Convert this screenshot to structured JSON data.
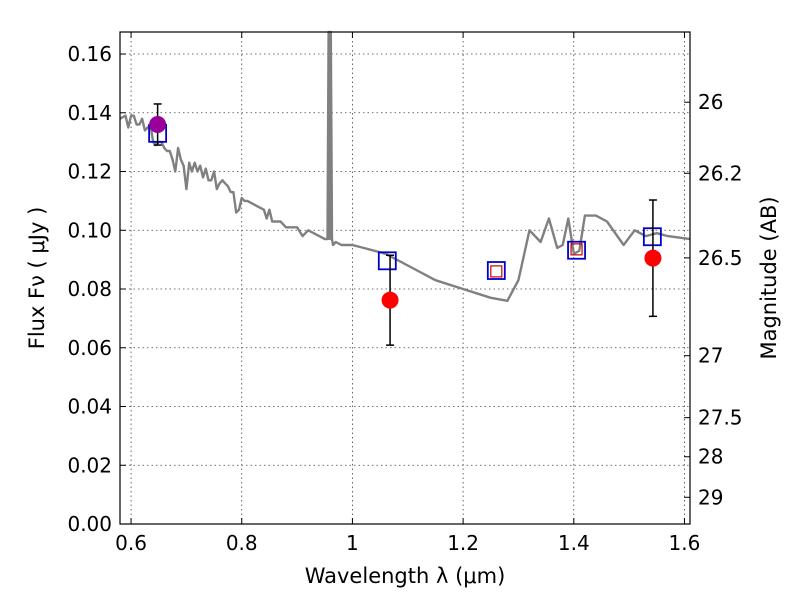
{
  "chart_data": {
    "type": "scatter",
    "xlabel": "Wavelength  λ (μm)",
    "ylabel": "Flux  Fν  ( μJy )",
    "ylabel_right": "Magnitude (AB)",
    "xlim": [
      0.58,
      1.61
    ],
    "ylim": [
      0.0,
      0.1675
    ],
    "x_ticks": [
      0.6,
      0.8,
      1.0,
      1.2,
      1.4,
      1.6
    ],
    "x_tick_labels": [
      "0.6",
      "0.8",
      "1",
      "1.2",
      "1.4",
      "1.6"
    ],
    "y_ticks": [
      0.0,
      0.02,
      0.04,
      0.06,
      0.08,
      0.1,
      0.12,
      0.14,
      0.16
    ],
    "y_tick_labels": [
      "0.00",
      "0.02",
      "0.04",
      "0.06",
      "0.08",
      "0.10",
      "0.12",
      "0.14",
      "0.16"
    ],
    "right_ticks": [
      {
        "flux": 0.1436,
        "label": "26"
      },
      {
        "flux": 0.1194,
        "label": "26.2"
      },
      {
        "flux": 0.0906,
        "label": "26.5"
      },
      {
        "flux": 0.0573,
        "label": "27"
      },
      {
        "flux": 0.0362,
        "label": "27.5"
      },
      {
        "flux": 0.0229,
        "label": "28"
      },
      {
        "flux": 0.0091,
        "label": "29"
      }
    ],
    "grid": true,
    "colors": {
      "model": "#808080",
      "observed": "#ff0000",
      "highlight": "#990099",
      "model_box": "#0000cc",
      "small_box": "#cc0000",
      "errorbar": "#000000"
    },
    "model_spectrum": {
      "x": [
        0.58,
        0.59,
        0.595,
        0.6,
        0.605,
        0.61,
        0.615,
        0.62,
        0.625,
        0.63,
        0.635,
        0.64,
        0.645,
        0.65,
        0.655,
        0.66,
        0.665,
        0.67,
        0.675,
        0.68,
        0.685,
        0.69,
        0.695,
        0.7,
        0.705,
        0.71,
        0.715,
        0.72,
        0.725,
        0.73,
        0.735,
        0.74,
        0.745,
        0.75,
        0.755,
        0.76,
        0.765,
        0.77,
        0.775,
        0.78,
        0.785,
        0.79,
        0.795,
        0.8,
        0.805,
        0.81,
        0.82,
        0.83,
        0.84,
        0.845,
        0.85,
        0.855,
        0.86,
        0.87,
        0.88,
        0.89,
        0.9,
        0.91,
        0.92,
        0.93,
        0.94,
        0.95,
        0.955,
        0.957,
        0.959,
        0.961,
        0.963,
        0.965,
        0.97,
        0.98,
        1.0,
        1.02,
        1.04,
        1.06,
        1.1,
        1.15,
        1.2,
        1.25,
        1.28,
        1.3,
        1.32,
        1.34,
        1.355,
        1.37,
        1.38,
        1.39,
        1.4,
        1.41,
        1.42,
        1.44,
        1.46,
        1.49,
        1.51,
        1.53,
        1.55,
        1.57,
        1.61
      ],
      "y": [
        0.138,
        0.139,
        0.135,
        0.139,
        0.139,
        0.136,
        0.136,
        0.138,
        0.134,
        0.135,
        0.136,
        0.13,
        0.129,
        0.13,
        0.13,
        0.128,
        0.127,
        0.127,
        0.124,
        0.12,
        0.128,
        0.124,
        0.122,
        0.114,
        0.123,
        0.12,
        0.123,
        0.12,
        0.122,
        0.118,
        0.121,
        0.117,
        0.117,
        0.12,
        0.114,
        0.116,
        0.117,
        0.116,
        0.115,
        0.113,
        0.113,
        0.106,
        0.107,
        0.111,
        0.11,
        0.11,
        0.109,
        0.108,
        0.107,
        0.104,
        0.107,
        0.103,
        0.103,
        0.103,
        0.101,
        0.101,
        0.101,
        0.098,
        0.1,
        0.099,
        0.098,
        0.097,
        0.097,
        0.168,
        0.097,
        0.168,
        0.097,
        0.095,
        0.096,
        0.095,
        0.095,
        0.094,
        0.093,
        0.092,
        0.088,
        0.083,
        0.08,
        0.077,
        0.076,
        0.083,
        0.1,
        0.096,
        0.104,
        0.094,
        0.095,
        0.104,
        0.092,
        0.093,
        0.105,
        0.105,
        0.103,
        0.095,
        0.1,
        0.098,
        0.099,
        0.098,
        0.097
      ]
    },
    "observed": [
      {
        "x": 0.648,
        "y": 0.136,
        "err": 0.007,
        "highlight": true
      },
      {
        "x": 1.068,
        "y": 0.0762,
        "err": 0.0153
      },
      {
        "x": 1.543,
        "y": 0.0905,
        "err": 0.0198
      }
    ],
    "model_boxes": [
      {
        "x": 0.648,
        "y": 0.133
      },
      {
        "x": 1.063,
        "y": 0.0896
      },
      {
        "x": 1.26,
        "y": 0.0863
      },
      {
        "x": 1.405,
        "y": 0.0932
      },
      {
        "x": 1.542,
        "y": 0.0978
      }
    ],
    "small_boxes": [
      {
        "x": 1.26,
        "y": 0.086
      },
      {
        "x": 1.405,
        "y": 0.0935
      }
    ]
  }
}
